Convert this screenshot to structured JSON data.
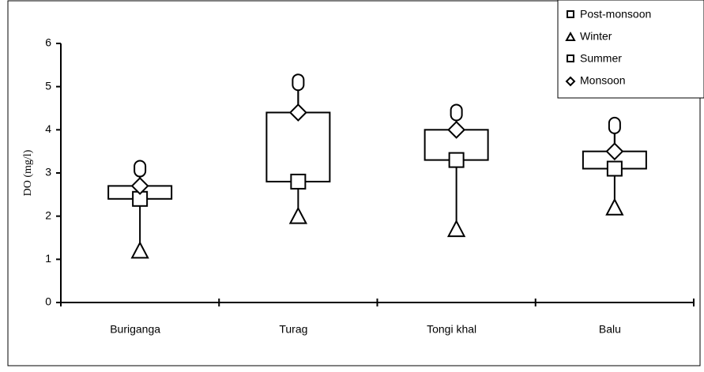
{
  "chart_data": {
    "type": "seasonal-box",
    "y_label": "DO (mg/l)",
    "categories": [
      "Buriganga",
      "Turag",
      "Tongi khal",
      "Balu"
    ],
    "series": [
      {
        "name": "Post-monsoon",
        "marker": "circle",
        "color": "#000000",
        "values": [
          3.1,
          5.1,
          4.4,
          4.1
        ]
      },
      {
        "name": "Winter",
        "marker": "triangle",
        "color": "#000000",
        "values": [
          1.2,
          2.0,
          1.7,
          2.2
        ]
      },
      {
        "name": "Summer",
        "marker": "square",
        "color": "#000000",
        "values": [
          2.4,
          2.8,
          3.3,
          3.1
        ]
      },
      {
        "name": "Monsoon",
        "marker": "diamond",
        "color": "#000000",
        "values": [
          2.7,
          4.4,
          4.0,
          3.5
        ]
      }
    ],
    "ylim": [
      0,
      6
    ],
    "yticks": [
      0,
      1,
      2,
      3,
      4,
      5,
      6
    ],
    "grid": false,
    "legend": "top-right"
  }
}
